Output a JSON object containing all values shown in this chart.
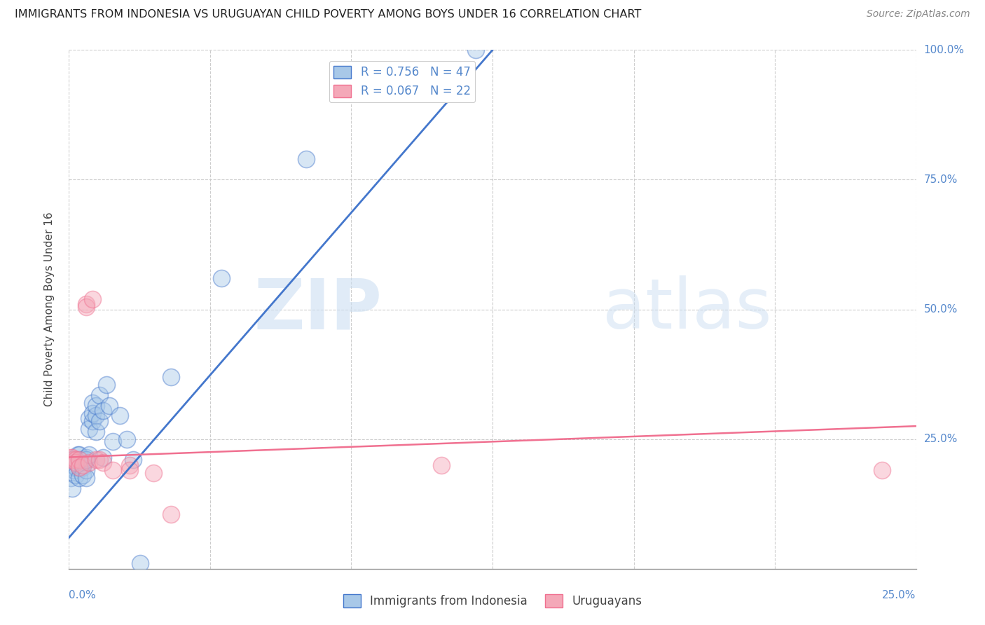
{
  "title": "IMMIGRANTS FROM INDONESIA VS URUGUAYAN CHILD POVERTY AMONG BOYS UNDER 16 CORRELATION CHART",
  "source": "Source: ZipAtlas.com",
  "ylabel": "Child Poverty Among Boys Under 16",
  "ylabel_right_ticks": [
    "100.0%",
    "75.0%",
    "50.0%",
    "25.0%"
  ],
  "ylabel_right_values": [
    1.0,
    0.75,
    0.5,
    0.25
  ],
  "xmin": 0.0,
  "xmax": 0.25,
  "ymin": 0.0,
  "ymax": 1.0,
  "series1_color": "#a8c8e8",
  "series2_color": "#f4a8b8",
  "trendline1_color": "#4477cc",
  "trendline2_color": "#f07090",
  "blue_points_x": [
    0.0005,
    0.001,
    0.001,
    0.001,
    0.0015,
    0.0015,
    0.002,
    0.002,
    0.002,
    0.0025,
    0.003,
    0.003,
    0.003,
    0.003,
    0.003,
    0.004,
    0.004,
    0.004,
    0.005,
    0.005,
    0.005,
    0.005,
    0.005,
    0.006,
    0.006,
    0.006,
    0.007,
    0.007,
    0.007,
    0.008,
    0.008,
    0.008,
    0.009,
    0.009,
    0.01,
    0.01,
    0.011,
    0.012,
    0.013,
    0.015,
    0.017,
    0.019,
    0.021,
    0.03,
    0.045,
    0.07,
    0.12
  ],
  "blue_points_y": [
    0.175,
    0.155,
    0.195,
    0.21,
    0.19,
    0.2,
    0.205,
    0.195,
    0.18,
    0.22,
    0.2,
    0.175,
    0.195,
    0.21,
    0.22,
    0.2,
    0.195,
    0.18,
    0.21,
    0.19,
    0.175,
    0.215,
    0.21,
    0.22,
    0.29,
    0.27,
    0.285,
    0.32,
    0.3,
    0.295,
    0.315,
    0.265,
    0.335,
    0.285,
    0.305,
    0.215,
    0.355,
    0.315,
    0.245,
    0.295,
    0.25,
    0.21,
    0.01,
    0.37,
    0.56,
    0.79,
    1.0
  ],
  "pink_points_x": [
    0.0005,
    0.001,
    0.001,
    0.002,
    0.002,
    0.003,
    0.003,
    0.004,
    0.005,
    0.005,
    0.006,
    0.007,
    0.008,
    0.009,
    0.01,
    0.013,
    0.018,
    0.018,
    0.025,
    0.03,
    0.11,
    0.24
  ],
  "pink_points_y": [
    0.215,
    0.21,
    0.215,
    0.21,
    0.205,
    0.21,
    0.195,
    0.2,
    0.51,
    0.505,
    0.205,
    0.52,
    0.21,
    0.21,
    0.205,
    0.19,
    0.2,
    0.19,
    0.185,
    0.105,
    0.2,
    0.19
  ],
  "blue_trendline_x0": 0.0,
  "blue_trendline_y0": 0.06,
  "blue_trendline_x1": 0.125,
  "blue_trendline_y1": 1.0,
  "pink_trendline_x0": 0.0,
  "pink_trendline_y0": 0.215,
  "pink_trendline_x1": 0.25,
  "pink_trendline_y1": 0.275,
  "background_color": "#ffffff",
  "grid_color": "#cccccc"
}
